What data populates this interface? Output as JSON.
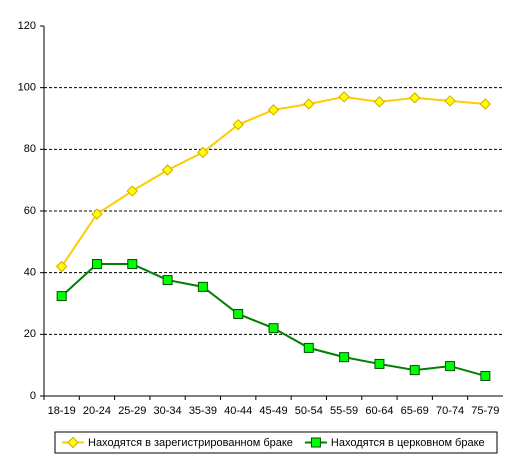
{
  "chart_data": {
    "type": "line",
    "categories": [
      "18-19",
      "20-24",
      "25-29",
      "30-34",
      "35-39",
      "40-44",
      "45-49",
      "50-54",
      "55-59",
      "60-64",
      "65-69",
      "70-74",
      "75-79"
    ],
    "series": [
      {
        "name": "Находятся в зарегистрированном браке",
        "color": "#ffcc00",
        "marker": "diamond",
        "values": [
          42,
          59,
          66.5,
          73.3,
          79,
          88,
          92.8,
          94.7,
          97,
          95.4,
          96.7,
          95.7,
          94.7
        ]
      },
      {
        "name": "Находятся в церковном браке",
        "color": "#008000",
        "marker": "square",
        "values": [
          32.4,
          42.8,
          42.8,
          37.6,
          35.4,
          26.6,
          22,
          15.6,
          12.6,
          10.4,
          8.4,
          9.7,
          6.5
        ]
      }
    ],
    "ylim": [
      0,
      120
    ],
    "yticks": [
      0,
      20,
      40,
      60,
      80,
      100,
      120
    ],
    "grid": true,
    "legend": "bottom"
  }
}
